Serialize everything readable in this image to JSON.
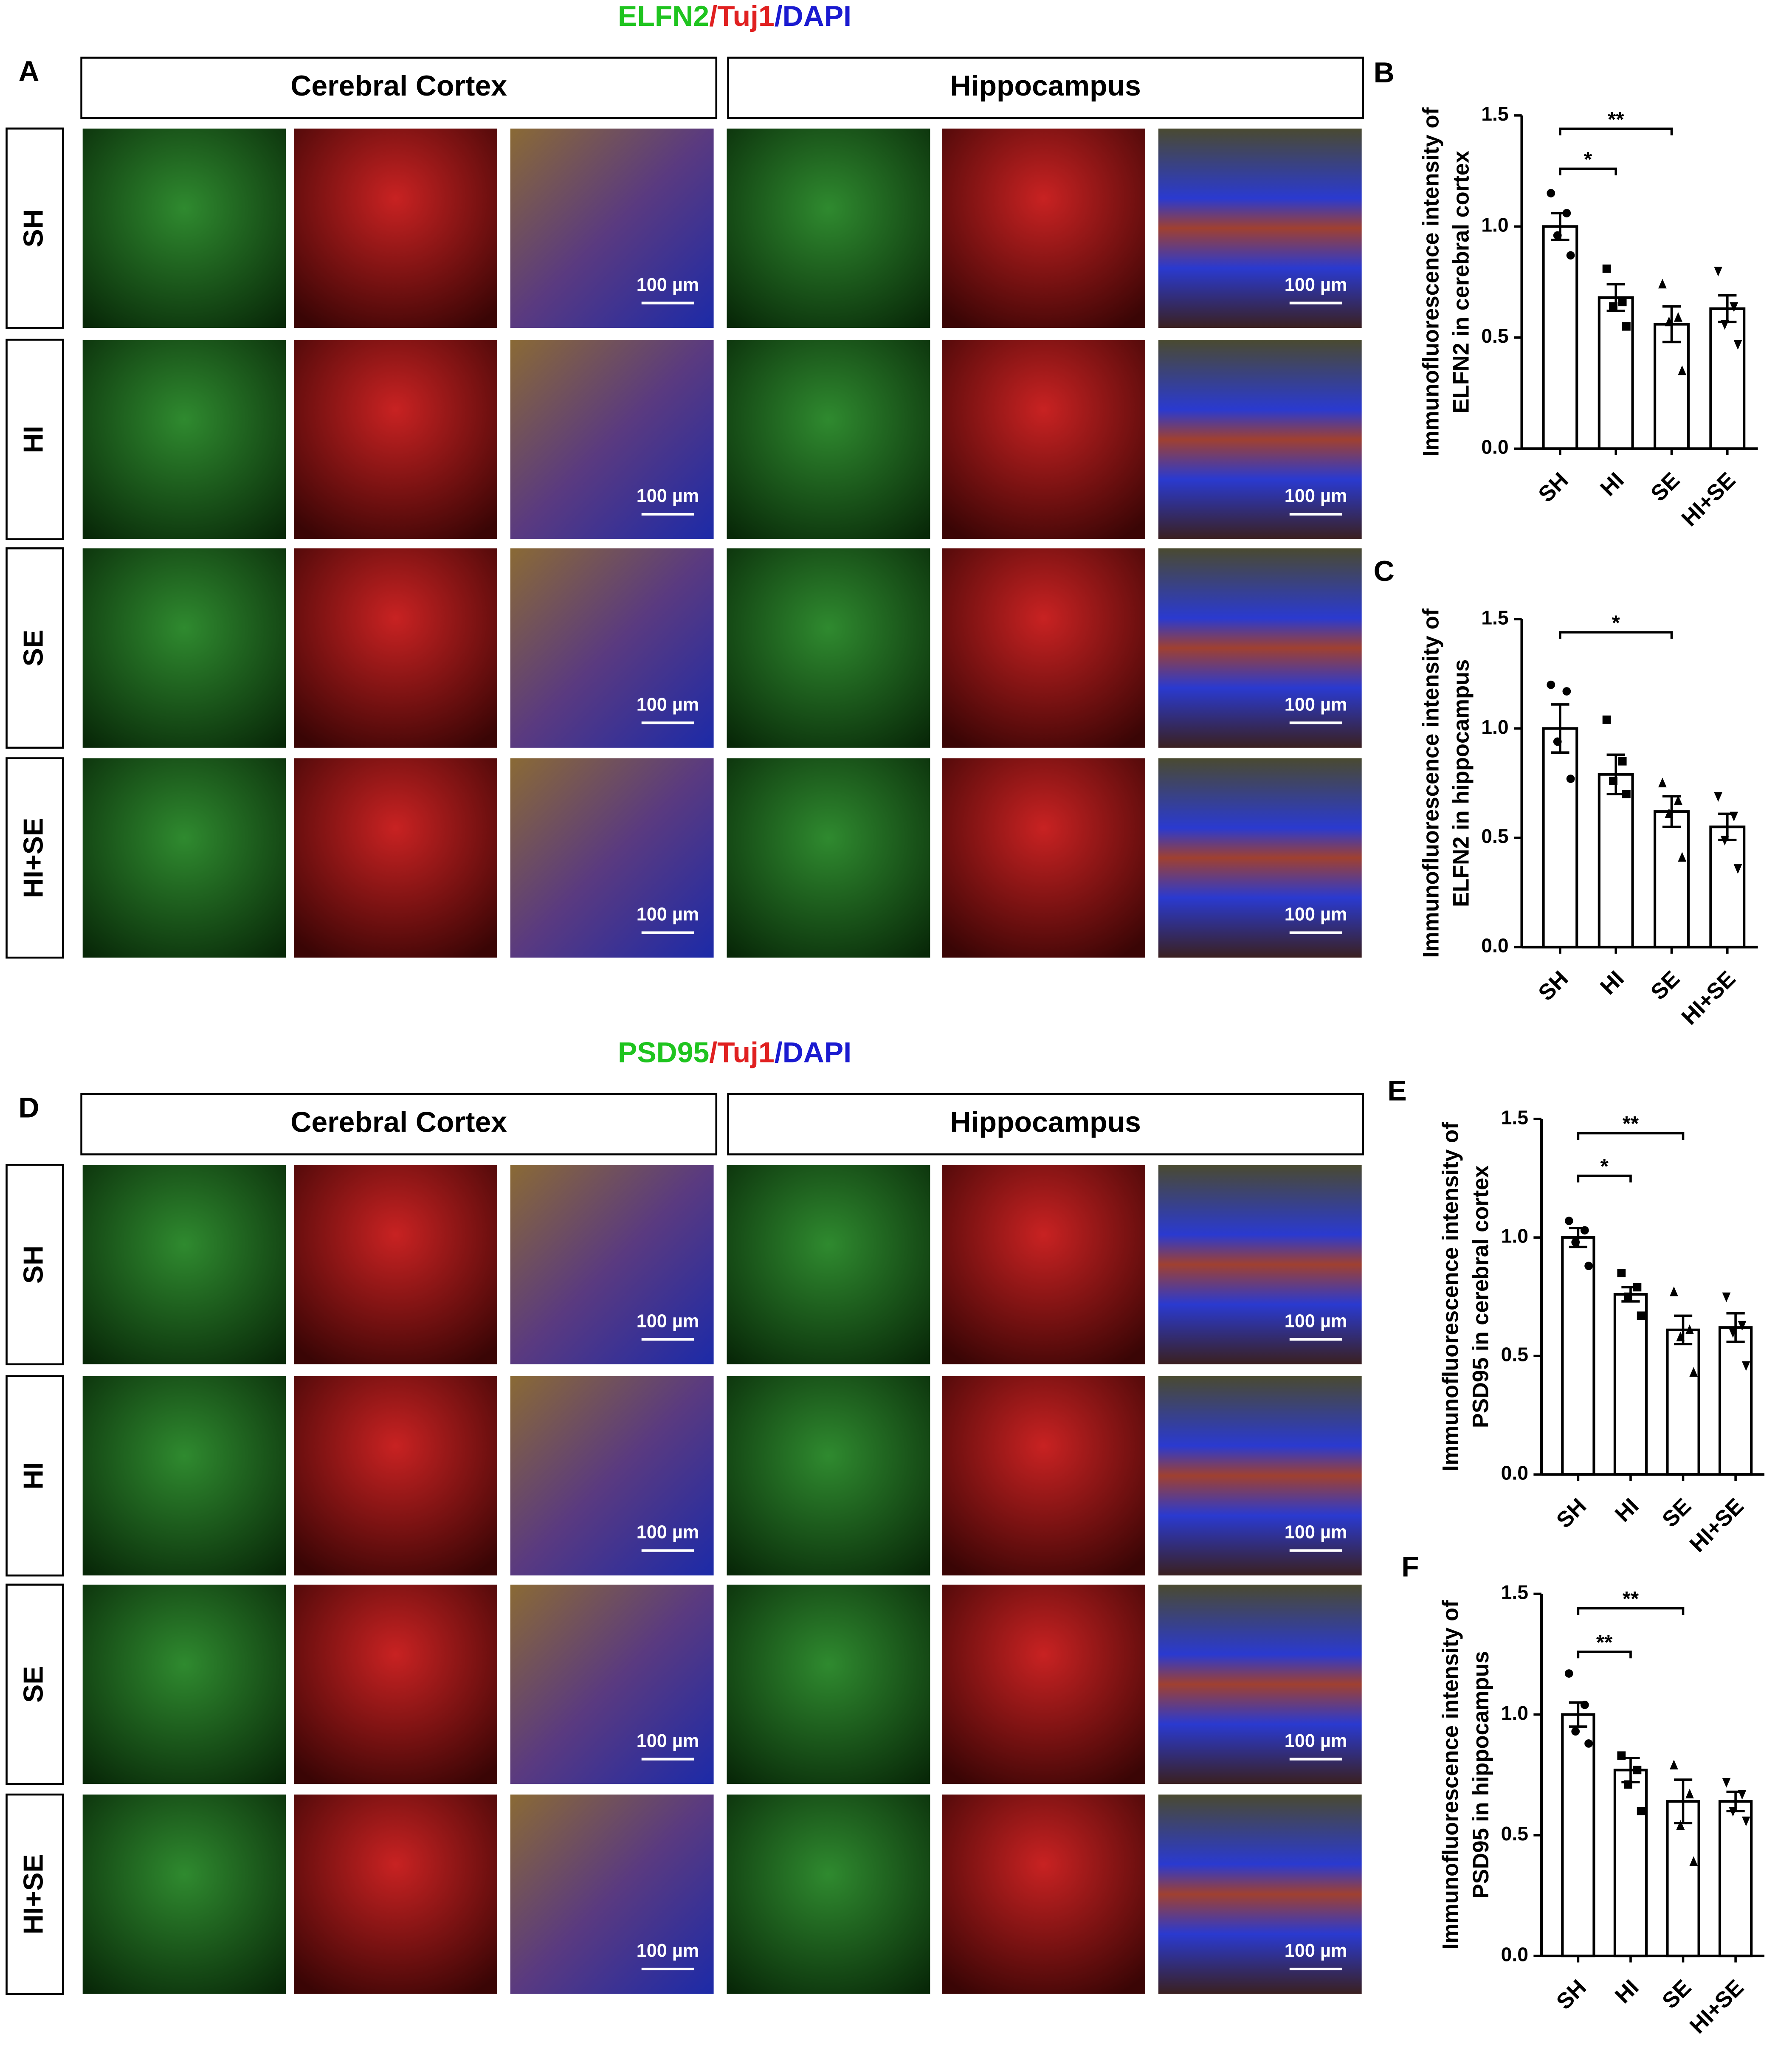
{
  "panels": [
    {
      "letter": "A",
      "title_parts": [
        {
          "text": "ELFN2",
          "color": "#1fc41f"
        },
        {
          "text": "/",
          "color": "#e02020"
        },
        {
          "text": "Tuj1",
          "color": "#e02020"
        },
        {
          "text": "/",
          "color": "#1a1ad0"
        },
        {
          "text": "DAPI",
          "color": "#1a1ad0"
        }
      ],
      "regions": [
        "Cerebral Cortex",
        "Hippocampus"
      ],
      "rows": [
        "SH",
        "HI",
        "SE",
        "HI+SE"
      ],
      "scale_bar": "100 µm"
    },
    {
      "letter": "D",
      "title_parts": [
        {
          "text": "PSD95",
          "color": "#1fc41f"
        },
        {
          "text": "/",
          "color": "#e02020"
        },
        {
          "text": "Tuj1",
          "color": "#e02020"
        },
        {
          "text": "/",
          "color": "#1a1ad0"
        },
        {
          "text": "DAPI",
          "color": "#1a1ad0"
        }
      ],
      "regions": [
        "Cerebral Cortex",
        "Hippocampus"
      ],
      "rows": [
        "SH",
        "HI",
        "SE",
        "HI+SE"
      ],
      "scale_bar": "100 µm"
    }
  ],
  "chart_data": [
    {
      "type": "bar",
      "letter": "B",
      "ylabel": [
        "Immunofluorescence intensity of",
        "ELFN2 in cerebral cortex"
      ],
      "categories": [
        "SH",
        "HI",
        "SE",
        "HI+SE"
      ],
      "values": [
        1.0,
        0.68,
        0.56,
        0.63
      ],
      "errors": [
        0.06,
        0.06,
        0.08,
        0.06
      ],
      "points": [
        [
          1.15,
          1.06,
          0.96,
          0.87
        ],
        [
          0.81,
          0.66,
          0.64,
          0.55
        ],
        [
          0.74,
          0.59,
          0.57,
          0.35
        ],
        [
          0.8,
          0.64,
          0.56,
          0.47
        ]
      ],
      "ylim": [
        0,
        1.5
      ],
      "yticks": [
        {
          "value": 0,
          "label": "0.0"
        },
        {
          "value": 0.5,
          "label": "0.5"
        },
        {
          "value": 1.0,
          "label": "1.0"
        },
        {
          "value": 1.5,
          "label": "1.5"
        }
      ],
      "annotations": [
        {
          "text": "*",
          "between": [
            "SH",
            "HI"
          ]
        },
        {
          "text": "**",
          "between": [
            "SH",
            "SE"
          ]
        }
      ],
      "color": "#ffffff",
      "edgecolor": "#000000"
    },
    {
      "type": "bar",
      "letter": "C",
      "ylabel": [
        "Immunofluorescence intensity of",
        "ELFN2 in hippocampus"
      ],
      "categories": [
        "SH",
        "HI",
        "SE",
        "HI+SE"
      ],
      "values": [
        1.0,
        0.79,
        0.62,
        0.55
      ],
      "errors": [
        0.11,
        0.09,
        0.07,
        0.06
      ],
      "points": [
        [
          1.2,
          1.17,
          0.94,
          0.77
        ],
        [
          1.04,
          0.85,
          0.76,
          0.7
        ],
        [
          0.75,
          0.67,
          0.61,
          0.41
        ],
        [
          0.69,
          0.6,
          0.49,
          0.36
        ]
      ],
      "ylim": [
        0,
        1.5
      ],
      "yticks": [
        {
          "value": 0,
          "label": "0.0"
        },
        {
          "value": 0.5,
          "label": "0.5"
        },
        {
          "value": 1.0,
          "label": "1.0"
        },
        {
          "value": 1.5,
          "label": "1.5"
        }
      ],
      "annotations": [
        {
          "text": "*",
          "between": [
            "SH",
            "SE"
          ]
        }
      ],
      "color": "#ffffff",
      "edgecolor": "#000000"
    },
    {
      "type": "bar",
      "letter": "E",
      "ylabel": [
        "Immunofluorescence intensity of",
        "PSD95 in cerebral cortex"
      ],
      "categories": [
        "SH",
        "HI",
        "SE",
        "HI+SE"
      ],
      "values": [
        1.0,
        0.76,
        0.61,
        0.62
      ],
      "errors": [
        0.04,
        0.03,
        0.06,
        0.06
      ],
      "points": [
        [
          1.07,
          1.03,
          0.98,
          0.88
        ],
        [
          0.85,
          0.79,
          0.75,
          0.67
        ],
        [
          0.77,
          0.61,
          0.58,
          0.43
        ],
        [
          0.75,
          0.63,
          0.6,
          0.46
        ]
      ],
      "ylim": [
        0,
        1.5
      ],
      "yticks": [
        {
          "value": 0,
          "label": "0.0"
        },
        {
          "value": 0.5,
          "label": "0.5"
        },
        {
          "value": 1.0,
          "label": "1.0"
        },
        {
          "value": 1.5,
          "label": "1.5"
        }
      ],
      "annotations": [
        {
          "text": "*",
          "between": [
            "SH",
            "HI"
          ]
        },
        {
          "text": "**",
          "between": [
            "SH",
            "SE"
          ]
        }
      ],
      "color": "#ffffff",
      "edgecolor": "#000000"
    },
    {
      "type": "bar",
      "letter": "F",
      "ylabel": [
        "Immunofluorescence intensity of",
        "PSD95 in hippocampus"
      ],
      "categories": [
        "SH",
        "HI",
        "SE",
        "HI+SE"
      ],
      "values": [
        1.0,
        0.77,
        0.64,
        0.64
      ],
      "errors": [
        0.05,
        0.05,
        0.09,
        0.04
      ],
      "points": [
        [
          1.17,
          1.04,
          0.93,
          0.88
        ],
        [
          0.83,
          0.77,
          0.71,
          0.6
        ],
        [
          0.79,
          0.67,
          0.54,
          0.39
        ],
        [
          0.72,
          0.67,
          0.6,
          0.56
        ]
      ],
      "ylim": [
        0,
        1.5
      ],
      "yticks": [
        {
          "value": 0,
          "label": "0.0"
        },
        {
          "value": 0.5,
          "label": "0.5"
        },
        {
          "value": 1.0,
          "label": "1.0"
        },
        {
          "value": 1.5,
          "label": "1.5"
        }
      ],
      "annotations": [
        {
          "text": "**",
          "between": [
            "SH",
            "HI"
          ]
        },
        {
          "text": "**",
          "between": [
            "SH",
            "SE"
          ]
        }
      ],
      "color": "#ffffff",
      "edgecolor": "#000000"
    }
  ]
}
